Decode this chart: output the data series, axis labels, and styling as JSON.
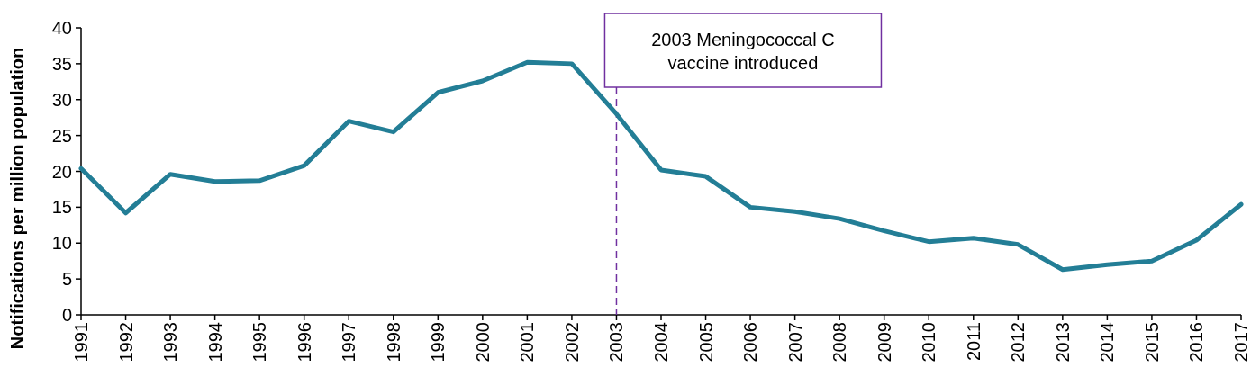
{
  "chart_data": {
    "type": "line",
    "ylabel": "Notifications per million population",
    "categories": [
      "1991",
      "1992",
      "1993",
      "1994",
      "1995",
      "1996",
      "1997",
      "1998",
      "1999",
      "2000",
      "2001",
      "2002",
      "2003",
      "2004",
      "2005",
      "2006",
      "2007",
      "2008",
      "2009",
      "2010",
      "2011",
      "2012",
      "2013",
      "2014",
      "2015",
      "2016",
      "2017"
    ],
    "series": [
      {
        "color": "#237e96",
        "values": [
          20.4,
          14.2,
          19.6,
          18.6,
          18.7,
          20.8,
          27.0,
          25.5,
          31.0,
          32.6,
          35.2,
          35.0,
          28.0,
          20.2,
          19.3,
          15.0,
          14.4,
          13.4,
          11.7,
          10.2,
          10.7,
          9.8,
          6.3,
          7.0,
          7.5,
          10.4,
          15.4
        ]
      }
    ],
    "ylim": [
      0,
      40
    ],
    "yticks": [
      0,
      5,
      10,
      15,
      20,
      25,
      30,
      35,
      40
    ],
    "grid": false,
    "marker": "none",
    "line_style": "solid",
    "ref_lines": [
      {
        "axis": "x",
        "value": "2003",
        "label": "2003 Meningococcal C\nvaccine introduced",
        "color": "#7030a0",
        "line_style": "dashed"
      }
    ]
  }
}
